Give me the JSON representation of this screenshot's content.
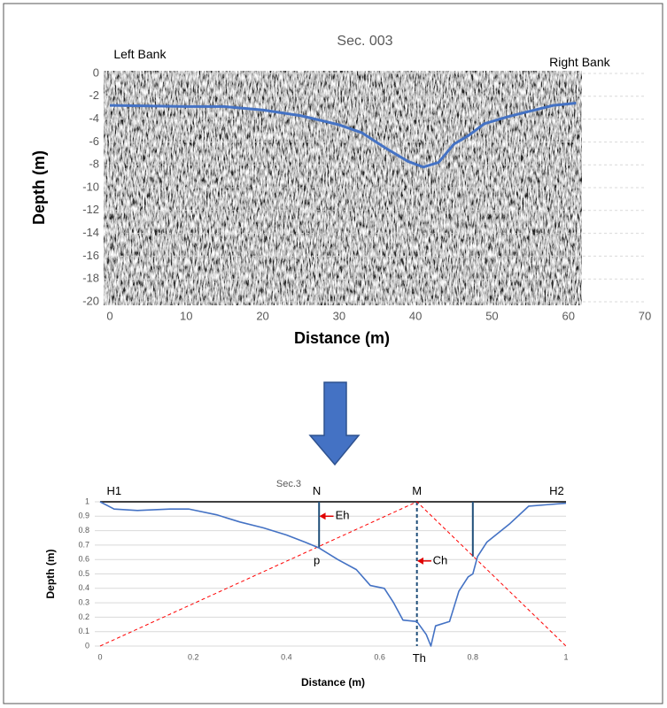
{
  "chart_data": [
    {
      "type": "line",
      "title": "Sec. 003",
      "x_label": "Distance (m)",
      "y_label": "Depth (m)",
      "xlim": [
        0,
        70
      ],
      "xticks": [
        0,
        10,
        20,
        30,
        40,
        50,
        60,
        70
      ],
      "ylim": [
        -20,
        0
      ],
      "yticks": [
        0,
        -2,
        -4,
        -6,
        -8,
        -10,
        -12,
        -14,
        -16,
        -18,
        -20
      ],
      "grid": true,
      "color": "#4472c4",
      "x": [
        0,
        10,
        15,
        20,
        25,
        30,
        33,
        36,
        39,
        41,
        43,
        44,
        45,
        47,
        49,
        52,
        55,
        58,
        61
      ],
      "values": [
        -2.8,
        -2.9,
        -2.9,
        -3.2,
        -3.7,
        -4.5,
        -5.2,
        -6.5,
        -7.7,
        -8.2,
        -7.8,
        -7.0,
        -6.2,
        -5.4,
        -4.4,
        -3.8,
        -3.3,
        -2.8,
        -2.6
      ],
      "annotations": [
        {
          "text": "Left Bank",
          "x": 0.5,
          "y": 1.6
        },
        {
          "text": "Right Bank",
          "x": 57.5,
          "y": 0.9
        }
      ]
    },
    {
      "type": "line",
      "title": "Sec.3",
      "x_label": "Distance (m)",
      "y_label": "Depth (m)",
      "xlim": [
        0,
        1
      ],
      "xticks": [
        0,
        0.2,
        0.4,
        0.6,
        0.8,
        1
      ],
      "ylim": [
        0,
        1
      ],
      "yticks": [
        0,
        0.1,
        0.2,
        0.3,
        0.4,
        0.5,
        0.6,
        0.7,
        0.8,
        0.9,
        1
      ],
      "grid": true,
      "color": "#4472c4",
      "x": [
        0,
        0.03,
        0.08,
        0.15,
        0.19,
        0.25,
        0.3,
        0.35,
        0.4,
        0.44,
        0.47,
        0.51,
        0.55,
        0.58,
        0.61,
        0.63,
        0.65,
        0.68,
        0.7,
        0.71,
        0.72,
        0.75,
        0.77,
        0.79,
        0.8,
        0.81,
        0.83,
        0.88,
        0.92,
        0.96,
        1
      ],
      "values": [
        1,
        0.95,
        0.94,
        0.95,
        0.95,
        0.91,
        0.86,
        0.82,
        0.77,
        0.72,
        0.68,
        0.6,
        0.53,
        0.42,
        0.4,
        0.3,
        0.18,
        0.17,
        0.08,
        0,
        0.14,
        0.17,
        0.38,
        0.48,
        0.5,
        0.62,
        0.72,
        0.85,
        0.97,
        0.98,
        0.99
      ],
      "guides": [
        {
          "x": [
            0,
            1
          ],
          "y": [
            1,
            1
          ],
          "color": "#404040"
        },
        {
          "x": [
            0.47,
            0.47
          ],
          "y": [
            1,
            0.68
          ],
          "color": "#1f4e79"
        },
        {
          "x": [
            0.68,
            0.68
          ],
          "y": [
            1,
            0
          ],
          "color": "#1f4e79",
          "dash": true
        },
        {
          "x": [
            0.8,
            0.8
          ],
          "y": [
            1,
            0.62
          ],
          "color": "#1f4e79"
        },
        {
          "x": [
            0,
            0.68,
            1
          ],
          "y": [
            0,
            1,
            0
          ],
          "color": "#ff0000",
          "dash": true
        }
      ],
      "annotations": [
        {
          "text": "H1",
          "x": 0.03,
          "y": 1.07
        },
        {
          "text": "N",
          "x": 0.465,
          "y": 1.07
        },
        {
          "text": "M",
          "x": 0.68,
          "y": 1.07
        },
        {
          "text": "H2",
          "x": 0.98,
          "y": 1.07
        },
        {
          "text": "p",
          "x": 0.465,
          "y": 0.59
        },
        {
          "text": "Eh",
          "x": 0.52,
          "y": 0.9,
          "arrow": true
        },
        {
          "text": "Ch",
          "x": 0.73,
          "y": 0.59,
          "arrow": true
        },
        {
          "text": "Th",
          "x": 0.685,
          "y": -0.09
        }
      ]
    }
  ]
}
